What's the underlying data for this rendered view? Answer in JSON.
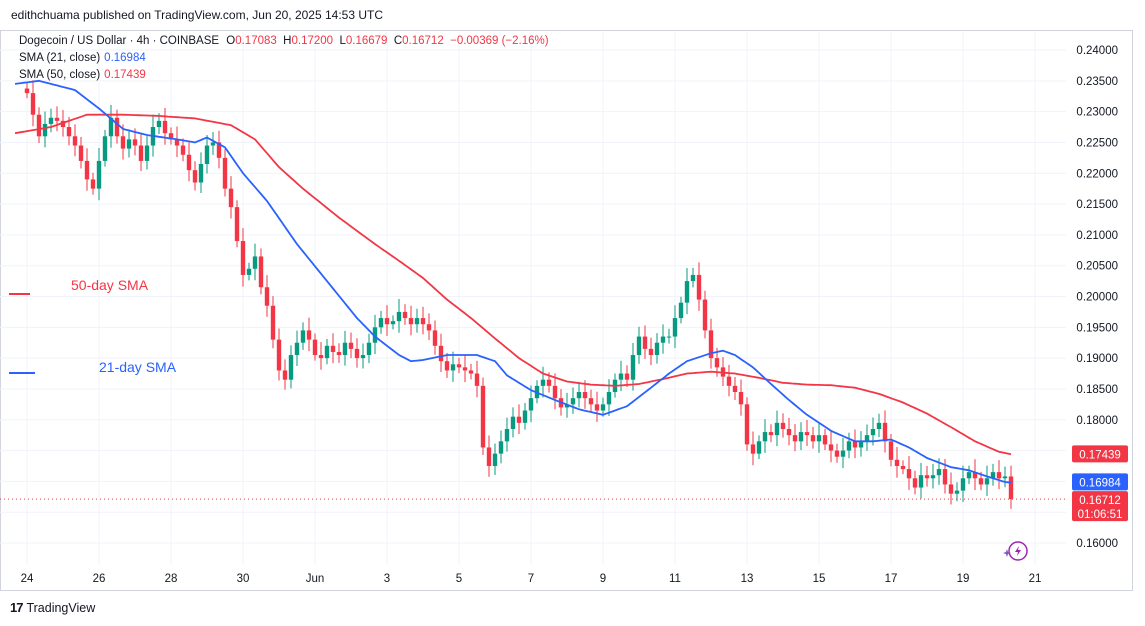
{
  "header": {
    "publisher": "edithchuama published on TradingView.com, Jun 20, 2025 14:53 UTC"
  },
  "legend": {
    "symbol": "Dogecoin / US Dollar · 4h · COINBASE",
    "o_label": "O",
    "o": "0.17083",
    "h_label": "H",
    "h": "0.17200",
    "l_label": "L",
    "l": "0.16679",
    "c_label": "C",
    "c": "0.16712",
    "change": "−0.00369 (−2.16%)",
    "sma21_label": "SMA (21, close)",
    "sma21": "0.16984",
    "sma50_label": "SMA (50, close)",
    "sma50": "0.17439"
  },
  "annotations": {
    "sma50": "50-day SMA",
    "sma21": "21-day SMA"
  },
  "badges": {
    "sma50": "0.17439",
    "sma21": "0.16984",
    "price": "0.16712",
    "countdown": "01:06:51"
  },
  "footer": {
    "brand": "TradingView",
    "logo": "17"
  },
  "colors": {
    "up": "#089981",
    "down": "#f23645",
    "sma21": "#2962ff",
    "sma50": "#f23645",
    "grid": "#f0f3fa",
    "text": "#131722"
  },
  "chart_data": {
    "type": "candlestick",
    "title": "Dogecoin / US Dollar · 4h · COINBASE",
    "yticks": [
      "0.16000",
      "0.16500",
      "0.17000",
      "0.17500",
      "0.18000",
      "0.18500",
      "0.19000",
      "0.19500",
      "0.20000",
      "0.20500",
      "0.21000",
      "0.21500",
      "0.22000",
      "0.22500",
      "0.23000",
      "0.23500",
      "0.24000"
    ],
    "ylim": [
      0.157,
      0.242
    ],
    "xticks": [
      {
        "label": "24",
        "t": 0
      },
      {
        "label": "26",
        "t": 12
      },
      {
        "label": "28",
        "t": 24
      },
      {
        "label": "30",
        "t": 36
      },
      {
        "label": "Jun",
        "t": 48
      },
      {
        "label": "3",
        "t": 60
      },
      {
        "label": "5",
        "t": 72
      },
      {
        "label": "7",
        "t": 84
      },
      {
        "label": "9",
        "t": 96
      },
      {
        "label": "11",
        "t": 108
      },
      {
        "label": "13",
        "t": 120
      },
      {
        "label": "15",
        "t": 132
      },
      {
        "label": "17",
        "t": 144
      },
      {
        "label": "19",
        "t": 156
      },
      {
        "label": "21",
        "t": 168
      }
    ],
    "last_price": 0.16712,
    "sma21_anchors": [
      [
        -2,
        0.2345
      ],
      [
        2,
        0.235
      ],
      [
        8,
        0.2335
      ],
      [
        12,
        0.2305
      ],
      [
        16,
        0.2272
      ],
      [
        20,
        0.2262
      ],
      [
        25,
        0.2255
      ],
      [
        28,
        0.225
      ],
      [
        30,
        0.2258
      ],
      [
        33,
        0.2242
      ],
      [
        36,
        0.22
      ],
      [
        40,
        0.2155
      ],
      [
        45,
        0.2085
      ],
      [
        50,
        0.2025
      ],
      [
        55,
        0.1965
      ],
      [
        58,
        0.1935
      ],
      [
        62,
        0.1905
      ],
      [
        64,
        0.1895
      ],
      [
        66,
        0.1897
      ],
      [
        70,
        0.1905
      ],
      [
        75,
        0.1905
      ],
      [
        78,
        0.1895
      ],
      [
        80,
        0.1872
      ],
      [
        84,
        0.1848
      ],
      [
        88,
        0.1832
      ],
      [
        92,
        0.1817
      ],
      [
        96,
        0.1808
      ],
      [
        100,
        0.1822
      ],
      [
        104,
        0.1852
      ],
      [
        107,
        0.1875
      ],
      [
        110,
        0.1895
      ],
      [
        114,
        0.1908
      ],
      [
        116,
        0.1912
      ],
      [
        118,
        0.1905
      ],
      [
        121,
        0.1885
      ],
      [
        124,
        0.1858
      ],
      [
        127,
        0.1832
      ],
      [
        130,
        0.1808
      ],
      [
        134,
        0.1782
      ],
      [
        138,
        0.1765
      ],
      [
        141,
        0.1765
      ],
      [
        144,
        0.1768
      ],
      [
        147,
        0.1755
      ],
      [
        150,
        0.1738
      ],
      [
        154,
        0.1723
      ],
      [
        157,
        0.1718
      ],
      [
        160,
        0.1708
      ],
      [
        163,
        0.1699
      ],
      [
        164,
        0.1698
      ]
    ],
    "sma50_anchors": [
      [
        -2,
        0.2265
      ],
      [
        4,
        0.2275
      ],
      [
        10,
        0.2295
      ],
      [
        16,
        0.2295
      ],
      [
        22,
        0.2293
      ],
      [
        28,
        0.2289
      ],
      [
        34,
        0.2278
      ],
      [
        38,
        0.2255
      ],
      [
        42,
        0.221
      ],
      [
        46,
        0.2175
      ],
      [
        52,
        0.2128
      ],
      [
        58,
        0.2085
      ],
      [
        62,
        0.2058
      ],
      [
        66,
        0.203
      ],
      [
        70,
        0.1995
      ],
      [
        74,
        0.1965
      ],
      [
        78,
        0.1932
      ],
      [
        82,
        0.19
      ],
      [
        86,
        0.1875
      ],
      [
        90,
        0.1862
      ],
      [
        94,
        0.1857
      ],
      [
        98,
        0.1855
      ],
      [
        102,
        0.1858
      ],
      [
        106,
        0.1866
      ],
      [
        110,
        0.1875
      ],
      [
        114,
        0.1878
      ],
      [
        118,
        0.1875
      ],
      [
        122,
        0.1868
      ],
      [
        126,
        0.186
      ],
      [
        130,
        0.1857
      ],
      [
        134,
        0.1856
      ],
      [
        138,
        0.1852
      ],
      [
        142,
        0.1842
      ],
      [
        146,
        0.1828
      ],
      [
        150,
        0.181
      ],
      [
        154,
        0.1788
      ],
      [
        158,
        0.1765
      ],
      [
        162,
        0.1748
      ],
      [
        164,
        0.1744
      ]
    ],
    "close_anchors": [
      [
        -2,
        0.2345
      ],
      [
        0,
        0.233
      ],
      [
        1,
        0.2295
      ],
      [
        2,
        0.226
      ],
      [
        3,
        0.228
      ],
      [
        4,
        0.229
      ],
      [
        5,
        0.2285
      ],
      [
        6,
        0.2275
      ],
      [
        7,
        0.226
      ],
      [
        8,
        0.2245
      ],
      [
        9,
        0.222
      ],
      [
        10,
        0.219
      ],
      [
        11,
        0.2175
      ],
      [
        12,
        0.222
      ],
      [
        13,
        0.226
      ],
      [
        14,
        0.229
      ],
      [
        15,
        0.226
      ],
      [
        16,
        0.224
      ],
      [
        17,
        0.2255
      ],
      [
        18,
        0.2245
      ],
      [
        19,
        0.222
      ],
      [
        20,
        0.2245
      ],
      [
        21,
        0.2275
      ],
      [
        22,
        0.2285
      ],
      [
        23,
        0.2265
      ],
      [
        24,
        0.2255
      ],
      [
        25,
        0.2245
      ],
      [
        26,
        0.223
      ],
      [
        27,
        0.2205
      ],
      [
        28,
        0.2185
      ],
      [
        29,
        0.2215
      ],
      [
        30,
        0.2245
      ],
      [
        31,
        0.225
      ],
      [
        32,
        0.2225
      ],
      [
        33,
        0.2175
      ],
      [
        34,
        0.2145
      ],
      [
        35,
        0.209
      ],
      [
        36,
        0.2035
      ],
      [
        37,
        0.2045
      ],
      [
        38,
        0.2065
      ],
      [
        39,
        0.2015
      ],
      [
        40,
        0.1985
      ],
      [
        41,
        0.193
      ],
      [
        42,
        0.188
      ],
      [
        43,
        0.1865
      ],
      [
        44,
        0.1905
      ],
      [
        45,
        0.1925
      ],
      [
        46,
        0.1945
      ],
      [
        47,
        0.193
      ],
      [
        48,
        0.1905
      ],
      [
        49,
        0.19
      ],
      [
        50,
        0.192
      ],
      [
        51,
        0.191
      ],
      [
        52,
        0.1905
      ],
      [
        53,
        0.1925
      ],
      [
        54,
        0.1915
      ],
      [
        55,
        0.19
      ],
      [
        56,
        0.1905
      ],
      [
        57,
        0.1925
      ],
      [
        58,
        0.195
      ],
      [
        59,
        0.1965
      ],
      [
        60,
        0.1955
      ],
      [
        61,
        0.196
      ],
      [
        62,
        0.1975
      ],
      [
        63,
        0.1965
      ],
      [
        64,
        0.1955
      ],
      [
        65,
        0.1965
      ],
      [
        66,
        0.1955
      ],
      [
        67,
        0.1945
      ],
      [
        68,
        0.192
      ],
      [
        69,
        0.1895
      ],
      [
        70,
        0.188
      ],
      [
        71,
        0.189
      ],
      [
        72,
        0.1885
      ],
      [
        73,
        0.188
      ],
      [
        74,
        0.1875
      ],
      [
        75,
        0.1855
      ],
      [
        76,
        0.1755
      ],
      [
        77,
        0.1725
      ],
      [
        78,
        0.1745
      ],
      [
        79,
        0.1765
      ],
      [
        80,
        0.1785
      ],
      [
        81,
        0.1805
      ],
      [
        82,
        0.1795
      ],
      [
        83,
        0.1815
      ],
      [
        84,
        0.1835
      ],
      [
        85,
        0.1855
      ],
      [
        86,
        0.1865
      ],
      [
        87,
        0.1855
      ],
      [
        88,
        0.1835
      ],
      [
        89,
        0.182
      ],
      [
        90,
        0.1825
      ],
      [
        91,
        0.1835
      ],
      [
        92,
        0.1845
      ],
      [
        93,
        0.1835
      ],
      [
        94,
        0.1825
      ],
      [
        95,
        0.1815
      ],
      [
        96,
        0.1825
      ],
      [
        97,
        0.1845
      ],
      [
        98,
        0.1865
      ],
      [
        99,
        0.1875
      ],
      [
        100,
        0.1865
      ],
      [
        101,
        0.1905
      ],
      [
        102,
        0.1935
      ],
      [
        103,
        0.1915
      ],
      [
        104,
        0.1905
      ],
      [
        105,
        0.1925
      ],
      [
        106,
        0.1935
      ],
      [
        107,
        0.1935
      ],
      [
        108,
        0.1965
      ],
      [
        109,
        0.199
      ],
      [
        110,
        0.2025
      ],
      [
        111,
        0.2035
      ],
      [
        112,
        0.1995
      ],
      [
        113,
        0.1945
      ],
      [
        114,
        0.19
      ],
      [
        115,
        0.1885
      ],
      [
        116,
        0.187
      ],
      [
        117,
        0.1855
      ],
      [
        118,
        0.1845
      ],
      [
        119,
        0.1825
      ],
      [
        120,
        0.176
      ],
      [
        121,
        0.1745
      ],
      [
        122,
        0.1765
      ],
      [
        123,
        0.178
      ],
      [
        124,
        0.1775
      ],
      [
        125,
        0.1795
      ],
      [
        126,
        0.1785
      ],
      [
        127,
        0.1775
      ],
      [
        128,
        0.1765
      ],
      [
        129,
        0.178
      ],
      [
        130,
        0.1775
      ],
      [
        131,
        0.1765
      ],
      [
        132,
        0.1775
      ],
      [
        133,
        0.176
      ],
      [
        134,
        0.175
      ],
      [
        135,
        0.174
      ],
      [
        136,
        0.175
      ],
      [
        137,
        0.1765
      ],
      [
        138,
        0.1755
      ],
      [
        139,
        0.1765
      ],
      [
        140,
        0.1775
      ],
      [
        141,
        0.1785
      ],
      [
        142,
        0.1795
      ],
      [
        143,
        0.1765
      ],
      [
        144,
        0.1735
      ],
      [
        145,
        0.1725
      ],
      [
        146,
        0.172
      ],
      [
        147,
        0.1705
      ],
      [
        148,
        0.169
      ],
      [
        149,
        0.171
      ],
      [
        150,
        0.1705
      ],
      [
        151,
        0.171
      ],
      [
        152,
        0.172
      ],
      [
        153,
        0.1695
      ],
      [
        154,
        0.168
      ],
      [
        155,
        0.1685
      ],
      [
        156,
        0.1705
      ],
      [
        157,
        0.1715
      ],
      [
        158,
        0.1705
      ],
      [
        159,
        0.1695
      ],
      [
        160,
        0.1705
      ],
      [
        161,
        0.1715
      ],
      [
        162,
        0.1705
      ],
      [
        163,
        0.1708
      ],
      [
        164,
        0.16712
      ]
    ]
  }
}
